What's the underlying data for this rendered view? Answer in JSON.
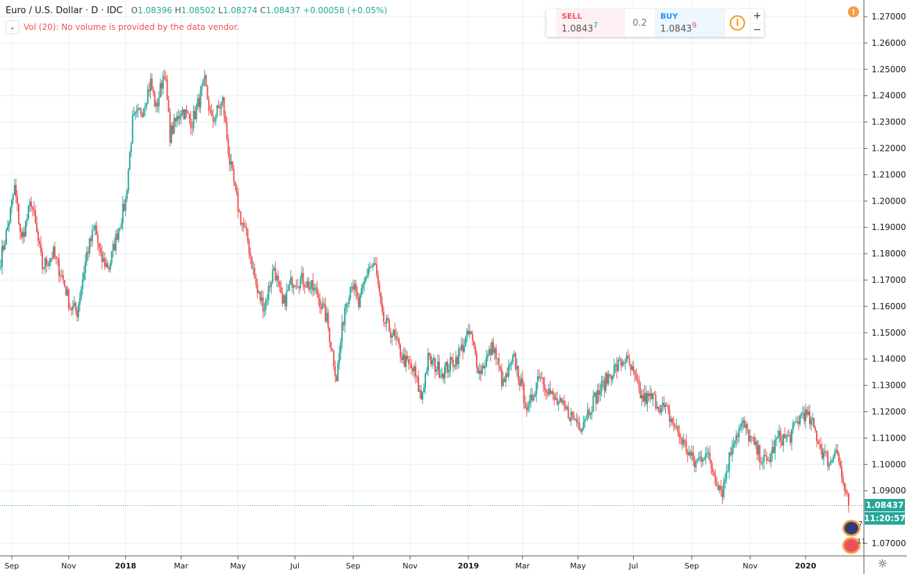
{
  "legend": {
    "title": "Euro / U.S. Dollar · D · IDC",
    "open": "1.08396",
    "high": "1.08502",
    "low": "1.08274",
    "close": "1.08437",
    "change": "+0.00058 (+0.05%)",
    "o": "O",
    "h": "H",
    "l": "L",
    "c": "C"
  },
  "volume": {
    "text": "Vol (20): No volume is provided by the data vendor.",
    "toggle": "⌄"
  },
  "trade": {
    "sell_label": "SELL",
    "sell_price": "1.0843",
    "sell_sup": "7",
    "spread": "0.2",
    "buy_label": "BUY",
    "buy_price": "1.0843",
    "buy_sup": "9",
    "info": "i",
    "plus": "+",
    "minus": "−"
  },
  "warning": "!",
  "price_tag": "1.08437",
  "countdown": "11:20:57",
  "events": [
    {
      "label": "7"
    },
    {
      "label": "11"
    }
  ],
  "settings_icon": "gear-icon",
  "colors": {
    "up": "#26a69a",
    "down": "#ef5350",
    "grid": "#e9eff4",
    "axis": "#50535e"
  },
  "chart_data": {
    "type": "candlestick",
    "symbol": "EURUSD",
    "interval": "D",
    "ylim": [
      1.063,
      1.2735
    ],
    "yticks": [
      "1.27000",
      "1.26000",
      "1.25000",
      "1.24000",
      "1.23000",
      "1.22000",
      "1.21000",
      "1.20000",
      "1.19000",
      "1.18000",
      "1.17000",
      "1.16000",
      "1.15000",
      "1.14000",
      "1.13000",
      "1.12000",
      "1.11000",
      "1.10000",
      "1.09000",
      "1.07000"
    ],
    "xticks": [
      {
        "label": "Sep",
        "bar": 8
      },
      {
        "label": "Nov",
        "bar": 49
      },
      {
        "label": "2018",
        "bar": 90,
        "bold": true
      },
      {
        "label": "Mar",
        "bar": 130
      },
      {
        "label": "May",
        "bar": 171
      },
      {
        "label": "Jul",
        "bar": 212
      },
      {
        "label": "Sep",
        "bar": 254
      },
      {
        "label": "Nov",
        "bar": 295
      },
      {
        "label": "2019",
        "bar": 337,
        "bold": true
      },
      {
        "label": "Mar",
        "bar": 376
      },
      {
        "label": "May",
        "bar": 416
      },
      {
        "label": "Jul",
        "bar": 456
      },
      {
        "label": "Sep",
        "bar": 498
      },
      {
        "label": "Nov",
        "bar": 540
      },
      {
        "label": "2020",
        "bar": 580,
        "bold": true
      }
    ],
    "bars_total": 612,
    "last_close": 1.08437,
    "close_anchors": [
      [
        0,
        1.178
      ],
      [
        5,
        1.19
      ],
      [
        10,
        1.205
      ],
      [
        15,
        1.185
      ],
      [
        22,
        1.2
      ],
      [
        30,
        1.175
      ],
      [
        38,
        1.18
      ],
      [
        45,
        1.17
      ],
      [
        50,
        1.16
      ],
      [
        55,
        1.158
      ],
      [
        62,
        1.18
      ],
      [
        68,
        1.19
      ],
      [
        72,
        1.178
      ],
      [
        78,
        1.175
      ],
      [
        85,
        1.19
      ],
      [
        90,
        1.2
      ],
      [
        95,
        1.23
      ],
      [
        102,
        1.235
      ],
      [
        108,
        1.245
      ],
      [
        112,
        1.235
      ],
      [
        118,
        1.25
      ],
      [
        122,
        1.225
      ],
      [
        130,
        1.235
      ],
      [
        138,
        1.23
      ],
      [
        147,
        1.245
      ],
      [
        152,
        1.23
      ],
      [
        160,
        1.238
      ],
      [
        165,
        1.215
      ],
      [
        172,
        1.195
      ],
      [
        178,
        1.185
      ],
      [
        185,
        1.165
      ],
      [
        190,
        1.16
      ],
      [
        197,
        1.175
      ],
      [
        203,
        1.16
      ],
      [
        210,
        1.17
      ],
      [
        218,
        1.17
      ],
      [
        228,
        1.165
      ],
      [
        235,
        1.155
      ],
      [
        242,
        1.133
      ],
      [
        248,
        1.16
      ],
      [
        253,
        1.17
      ],
      [
        258,
        1.16
      ],
      [
        265,
        1.175
      ],
      [
        270,
        1.175
      ],
      [
        275,
        1.155
      ],
      [
        282,
        1.15
      ],
      [
        290,
        1.14
      ],
      [
        298,
        1.135
      ],
      [
        303,
        1.125
      ],
      [
        308,
        1.14
      ],
      [
        318,
        1.135
      ],
      [
        328,
        1.14
      ],
      [
        338,
        1.15
      ],
      [
        345,
        1.135
      ],
      [
        355,
        1.145
      ],
      [
        362,
        1.13
      ],
      [
        370,
        1.14
      ],
      [
        380,
        1.12
      ],
      [
        388,
        1.135
      ],
      [
        398,
        1.125
      ],
      [
        408,
        1.12
      ],
      [
        418,
        1.115
      ],
      [
        428,
        1.125
      ],
      [
        440,
        1.135
      ],
      [
        450,
        1.14
      ],
      [
        455,
        1.135
      ],
      [
        462,
        1.125
      ],
      [
        470,
        1.125
      ],
      [
        480,
        1.12
      ],
      [
        490,
        1.11
      ],
      [
        500,
        1.1
      ],
      [
        508,
        1.105
      ],
      [
        515,
        1.095
      ],
      [
        520,
        1.09
      ],
      [
        528,
        1.11
      ],
      [
        535,
        1.115
      ],
      [
        545,
        1.105
      ],
      [
        552,
        1.1
      ],
      [
        560,
        1.11
      ],
      [
        568,
        1.11
      ],
      [
        578,
        1.12
      ],
      [
        585,
        1.115
      ],
      [
        592,
        1.105
      ],
      [
        598,
        1.1
      ],
      [
        602,
        1.108
      ],
      [
        606,
        1.095
      ],
      [
        611,
        1.0844
      ]
    ]
  }
}
